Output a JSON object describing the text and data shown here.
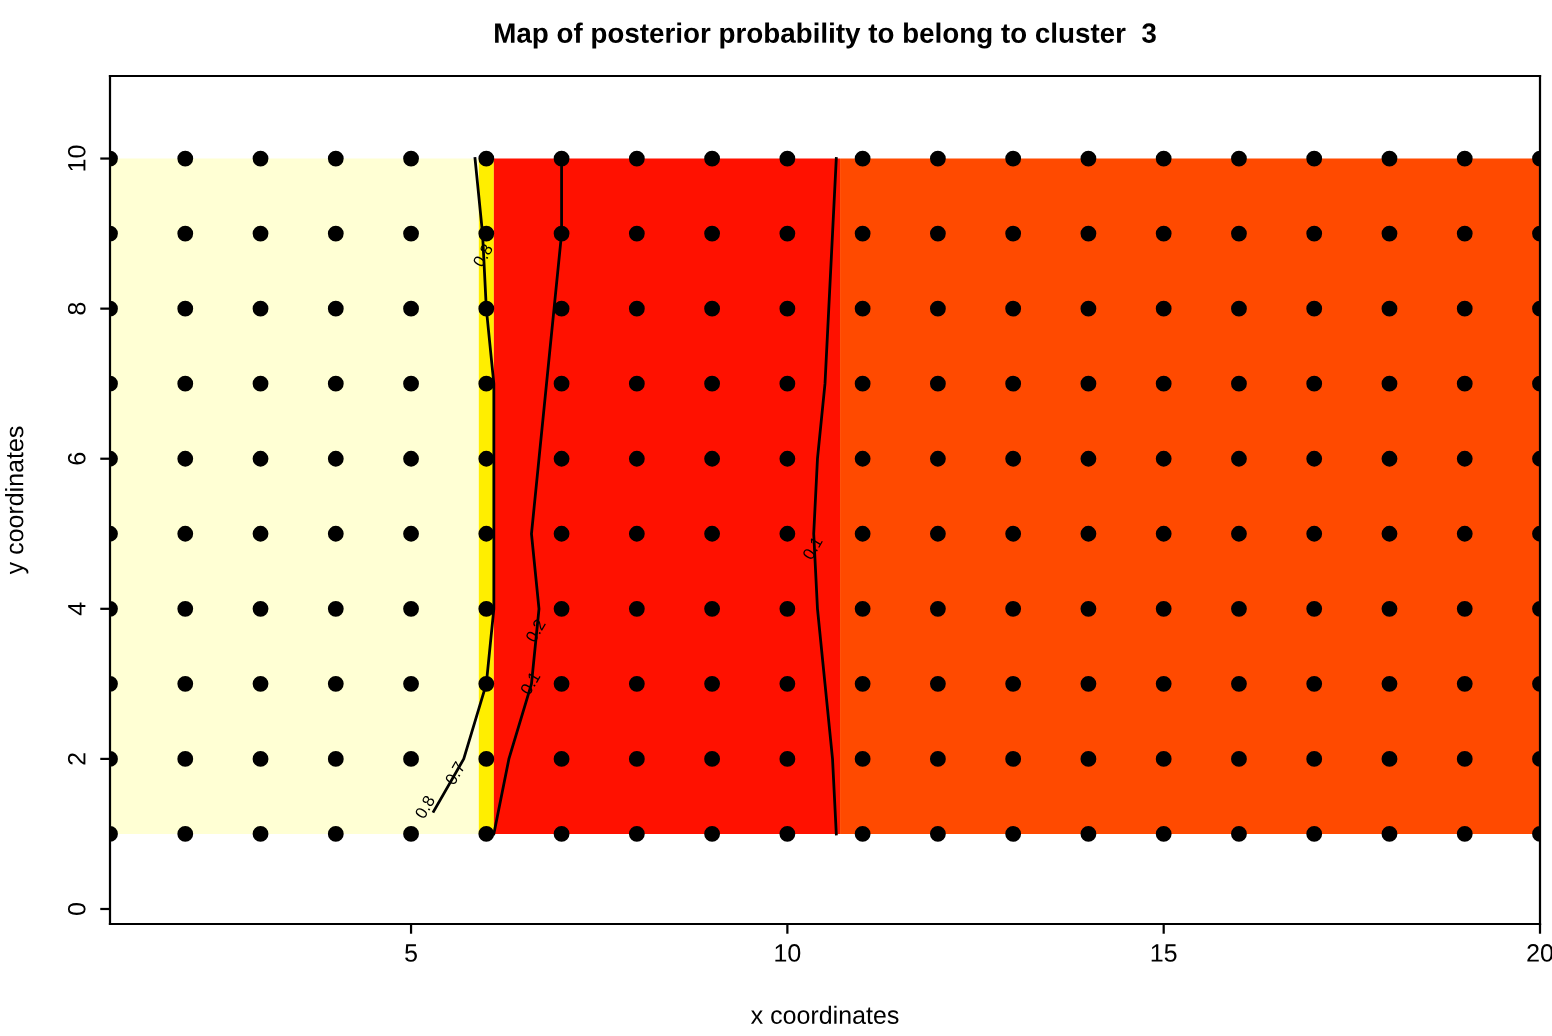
{
  "chart_data": {
    "type": "scatter",
    "title": "Map of posterior probability to belong to cluster  3",
    "xlabel": "x coordinates",
    "ylabel": "y coordinates",
    "xlim": [
      1,
      20
    ],
    "ylim": [
      -0.2,
      11.1
    ],
    "xticks": [
      5,
      10,
      15,
      20
    ],
    "yticks": [
      0,
      2,
      4,
      6,
      8,
      10
    ],
    "grid": false,
    "legend": false,
    "series": [
      {
        "marker": "circle",
        "color": "#000000",
        "x": [
          1,
          2,
          3,
          4,
          5,
          6,
          7,
          8,
          9,
          10,
          11,
          12,
          13,
          14,
          15,
          16,
          17,
          18,
          19,
          20,
          1,
          2,
          3,
          4,
          5,
          6,
          7,
          8,
          9,
          10,
          11,
          12,
          13,
          14,
          15,
          16,
          17,
          18,
          19,
          20,
          1,
          2,
          3,
          4,
          5,
          6,
          7,
          8,
          9,
          10,
          11,
          12,
          13,
          14,
          15,
          16,
          17,
          18,
          19,
          20,
          1,
          2,
          3,
          4,
          5,
          6,
          7,
          8,
          9,
          10,
          11,
          12,
          13,
          14,
          15,
          16,
          17,
          18,
          19,
          20,
          1,
          2,
          3,
          4,
          5,
          6,
          7,
          8,
          9,
          10,
          11,
          12,
          13,
          14,
          15,
          16,
          17,
          18,
          19,
          20,
          1,
          2,
          3,
          4,
          5,
          6,
          7,
          8,
          9,
          10,
          11,
          12,
          13,
          14,
          15,
          16,
          17,
          18,
          19,
          20,
          1,
          2,
          3,
          4,
          5,
          6,
          7,
          8,
          9,
          10,
          11,
          12,
          13,
          14,
          15,
          16,
          17,
          18,
          19,
          20,
          1,
          2,
          3,
          4,
          5,
          6,
          7,
          8,
          9,
          10,
          11,
          12,
          13,
          14,
          15,
          16,
          17,
          18,
          19,
          20,
          1,
          2,
          3,
          4,
          5,
          6,
          7,
          8,
          9,
          10,
          11,
          12,
          13,
          14,
          15,
          16,
          17,
          18,
          19,
          20,
          1,
          2,
          3,
          4,
          5,
          6,
          7,
          8,
          9,
          10,
          11,
          12,
          13,
          14,
          15,
          16,
          17,
          18,
          19,
          20
        ],
        "values": [
          1,
          1,
          1,
          1,
          1,
          1,
          1,
          1,
          1,
          1,
          1,
          1,
          1,
          1,
          1,
          1,
          1,
          1,
          1,
          1,
          2,
          2,
          2,
          2,
          2,
          2,
          2,
          2,
          2,
          2,
          2,
          2,
          2,
          2,
          2,
          2,
          2,
          2,
          2,
          2,
          3,
          3,
          3,
          3,
          3,
          3,
          3,
          3,
          3,
          3,
          3,
          3,
          3,
          3,
          3,
          3,
          3,
          3,
          3,
          3,
          4,
          4,
          4,
          4,
          4,
          4,
          4,
          4,
          4,
          4,
          4,
          4,
          4,
          4,
          4,
          4,
          4,
          4,
          4,
          4,
          5,
          5,
          5,
          5,
          5,
          5,
          5,
          5,
          5,
          5,
          5,
          5,
          5,
          5,
          5,
          5,
          5,
          5,
          5,
          5,
          6,
          6,
          6,
          6,
          6,
          6,
          6,
          6,
          6,
          6,
          6,
          6,
          6,
          6,
          6,
          6,
          6,
          6,
          6,
          6,
          7,
          7,
          7,
          7,
          7,
          7,
          7,
          7,
          7,
          7,
          7,
          7,
          7,
          7,
          7,
          7,
          7,
          7,
          7,
          7,
          8,
          8,
          8,
          8,
          8,
          8,
          8,
          8,
          8,
          8,
          8,
          8,
          8,
          8,
          8,
          8,
          8,
          8,
          8,
          8,
          9,
          9,
          9,
          9,
          9,
          9,
          9,
          9,
          9,
          9,
          9,
          9,
          9,
          9,
          9,
          9,
          9,
          9,
          9,
          9,
          10,
          10,
          10,
          10,
          10,
          10,
          10,
          10,
          10,
          10,
          10,
          10,
          10,
          10,
          10,
          10,
          10,
          10,
          10,
          10
        ]
      },
      {
        "type": "line",
        "color": "#000000",
        "x": [
          10.65,
          10.6,
          10.5,
          10.4,
          10.35,
          10.4,
          10.5,
          10.55,
          10.6,
          10.65
        ],
        "values": [
          1,
          2,
          3,
          4,
          5,
          6,
          7,
          8,
          9,
          10
        ]
      },
      {
        "type": "line",
        "color": "#000000",
        "x": [
          5.3,
          5.7,
          6.0,
          6.1,
          6.1,
          6.1,
          6.1,
          6.0,
          5.95,
          5.85
        ],
        "values": [
          1.3,
          2.0,
          3.0,
          4.0,
          5.0,
          6.0,
          7.0,
          8.0,
          9.0,
          10.0
        ]
      },
      {
        "type": "line",
        "color": "#000000",
        "x": [
          6.1,
          6.3,
          6.6,
          6.7,
          6.6,
          6.7,
          6.8,
          6.9,
          7.0,
          7.0
        ],
        "values": [
          1,
          2,
          3,
          4,
          5,
          6,
          7,
          8,
          9,
          10
        ]
      }
    ],
    "bands": [
      {
        "axis": "x",
        "from": 1,
        "to": 5.9,
        "color": "#ffffd4"
      },
      {
        "axis": "x",
        "from": 5.9,
        "to": 6.1,
        "color": "#ffee00"
      },
      {
        "axis": "x",
        "from": 6.1,
        "to": 10.7,
        "color": "#ff1100"
      },
      {
        "axis": "x",
        "from": 10.7,
        "to": 20,
        "color": "#ff4a00"
      }
    ],
    "annotations": [
      {
        "text": "0.8",
        "x": 5.2,
        "y": 1.35
      },
      {
        "text": "0.7",
        "x": 5.6,
        "y": 1.8
      },
      {
        "text": "0.1",
        "x": 6.6,
        "y": 3.0
      },
      {
        "text": "0.2",
        "x": 6.67,
        "y": 3.7
      },
      {
        "text": "0.8",
        "x": 5.97,
        "y": 8.7
      },
      {
        "text": "0.1",
        "x": 10.35,
        "y": 4.8
      }
    ]
  }
}
